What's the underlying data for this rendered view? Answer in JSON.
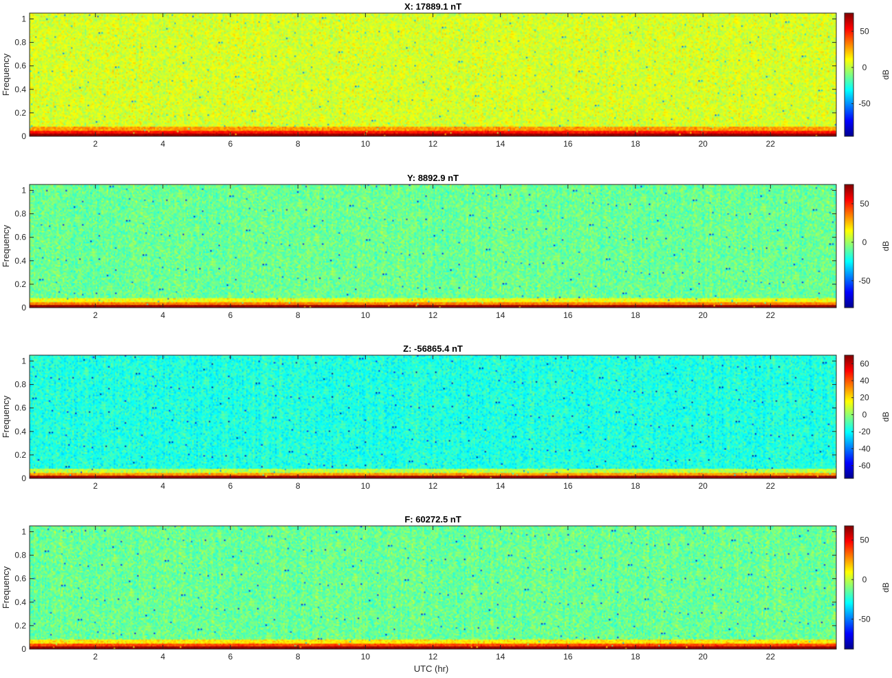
{
  "figure": {
    "xlabel": "UTC (hr)"
  },
  "colorbar_stops": [
    "#00008f",
    "#0000ff",
    "#0080ff",
    "#00ffff",
    "#80ff80",
    "#ffff00",
    "#ff8000",
    "#ff0000",
    "#800000"
  ],
  "chart_data": [
    {
      "type": "heatmap",
      "title": "X: 17889.1 nT",
      "xlabel": "",
      "ylabel": "Frequency",
      "xlim": [
        0.05,
        23.95
      ],
      "ylim": [
        0,
        1.05
      ],
      "xticks": [
        2,
        4,
        6,
        8,
        10,
        12,
        14,
        16,
        18,
        20,
        22
      ],
      "yticks": [
        0,
        0.2,
        0.4,
        0.6,
        0.8,
        1
      ],
      "colorbar": {
        "label": "dB",
        "clim": [
          -95,
          75
        ],
        "ticks": [
          -50,
          0,
          50
        ]
      },
      "background_db": 5,
      "noise_db": 9,
      "low_freq_band_db": 52,
      "low_freq_floor_db": 75,
      "colormap": "jet"
    },
    {
      "type": "heatmap",
      "title": "Y: 8892.9 nT",
      "xlabel": "",
      "ylabel": "Frequency",
      "xlim": [
        0.05,
        23.95
      ],
      "ylim": [
        0,
        1.05
      ],
      "xticks": [
        2,
        4,
        6,
        8,
        10,
        12,
        14,
        16,
        18,
        20,
        22
      ],
      "yticks": [
        0,
        0.2,
        0.4,
        0.6,
        0.8,
        1
      ],
      "colorbar": {
        "label": "dB",
        "clim": [
          -85,
          75
        ],
        "ticks": [
          -50,
          0,
          50
        ]
      },
      "background_db": -8,
      "noise_db": 9,
      "low_freq_band_db": 35,
      "low_freq_floor_db": 75,
      "colormap": "jet"
    },
    {
      "type": "heatmap",
      "title": "Z: -56865.4 nT",
      "xlabel": "",
      "ylabel": "Frequency",
      "xlim": [
        0.05,
        23.95
      ],
      "ylim": [
        0,
        1.05
      ],
      "xticks": [
        2,
        4,
        6,
        8,
        10,
        12,
        14,
        16,
        18,
        20,
        22
      ],
      "yticks": [
        0,
        0.2,
        0.4,
        0.6,
        0.8,
        1
      ],
      "colorbar": {
        "label": "dB",
        "clim": [
          -75,
          70
        ],
        "ticks": [
          -60,
          -40,
          -20,
          0,
          20,
          40,
          60
        ]
      },
      "background_db": -16,
      "noise_db": 8,
      "low_freq_band_db": 30,
      "low_freq_floor_db": 70,
      "colormap": "jet"
    },
    {
      "type": "heatmap",
      "title": "F: 60272.5 nT",
      "xlabel": "UTC (hr)",
      "ylabel": "Frequency",
      "xlim": [
        0.05,
        23.95
      ],
      "ylim": [
        0,
        1.05
      ],
      "xticks": [
        2,
        4,
        6,
        8,
        10,
        12,
        14,
        16,
        18,
        20,
        22
      ],
      "yticks": [
        0,
        0.2,
        0.4,
        0.6,
        0.8,
        1
      ],
      "colorbar": {
        "label": "dB",
        "clim": [
          -88,
          68
        ],
        "ticks": [
          -50,
          0,
          50
        ]
      },
      "background_db": -13,
      "noise_db": 9,
      "low_freq_band_db": 38,
      "low_freq_floor_db": 68,
      "colormap": "jet"
    }
  ]
}
